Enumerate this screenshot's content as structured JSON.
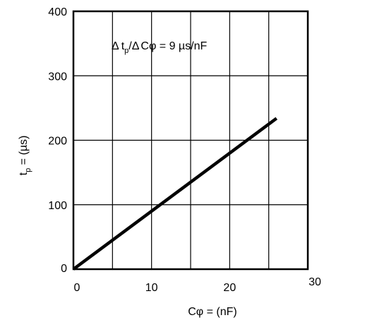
{
  "chart_data": {
    "type": "line",
    "title": "",
    "xlabel": "Cφ = (nF)",
    "ylabel_main": "t",
    "ylabel_sub": "p",
    "ylabel_rest": " = (µs)",
    "xlim": [
      0,
      30
    ],
    "ylim": [
      0,
      400
    ],
    "x_ticks": [
      0,
      10,
      20,
      30
    ],
    "x_tick_labels": [
      "0",
      "10",
      "20",
      "30"
    ],
    "x_gridlines": [
      0,
      5,
      10,
      15,
      20,
      25,
      30
    ],
    "y_ticks": [
      0,
      100,
      200,
      300,
      400
    ],
    "y_tick_labels": [
      "0",
      "100",
      "200",
      "300",
      "400"
    ],
    "grid": true,
    "series": [
      {
        "x": [
          0,
          26
        ],
        "y": [
          0,
          234
        ]
      }
    ],
    "annotation": {
      "delta1": "Δ",
      "t": "t",
      "t_sub": "p",
      "slash": "/",
      "delta2": "Δ",
      "rest": "Cφ = 9 µs/nF"
    }
  }
}
